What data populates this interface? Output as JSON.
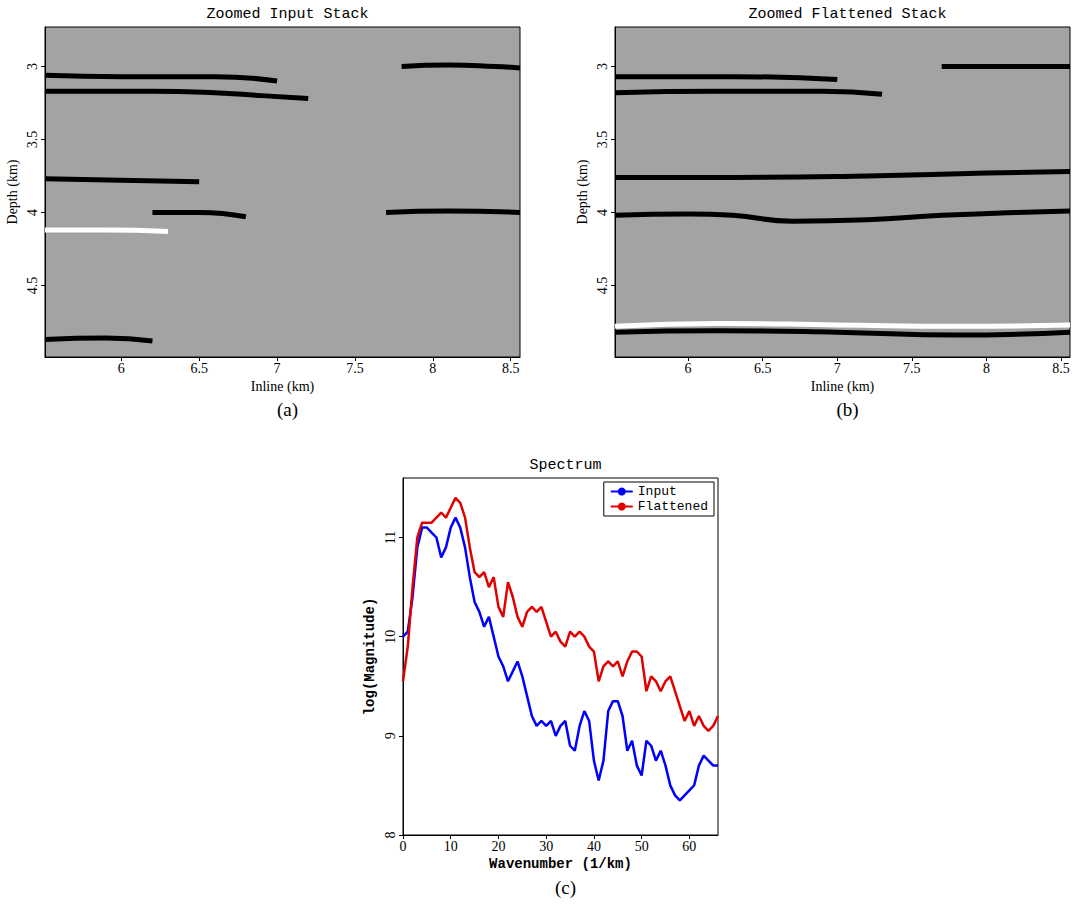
{
  "chart_data": [
    {
      "type": "line",
      "title": "Zoomed Input Stack",
      "label": "(a)",
      "x_label": "Inline (km)",
      "y_label": "Depth (km)",
      "xlim": [
        5.51,
        8.56
      ],
      "ylim": [
        4.99,
        2.73
      ],
      "xticks": [
        6,
        6.5,
        7,
        7.5,
        8,
        8.5
      ],
      "yticks": [
        3,
        3.5,
        4,
        4.5
      ],
      "grid": false,
      "series": [
        {
          "color": "#000000",
          "x": [
            5.51,
            6.0,
            6.6,
            7.0
          ],
          "values": [
            3.06,
            3.07,
            3.07,
            3.1
          ]
        },
        {
          "color": "#000000",
          "x": [
            5.51,
            5.8,
            6.2,
            6.6,
            6.9,
            7.2
          ],
          "values": [
            3.17,
            3.17,
            3.17,
            3.18,
            3.2,
            3.22
          ]
        },
        {
          "color": "#000000",
          "x": [
            7.8,
            8.1,
            8.4,
            8.56
          ],
          "values": [
            3.0,
            2.99,
            3.0,
            3.01
          ]
        },
        {
          "color": "#000000",
          "x": [
            5.51,
            6.0,
            6.5
          ],
          "values": [
            3.77,
            3.78,
            3.79
          ]
        },
        {
          "color": "#000000",
          "x": [
            6.2,
            6.5,
            6.8
          ],
          "values": [
            4.0,
            4.0,
            4.03
          ]
        },
        {
          "color": "#000000",
          "x": [
            7.7,
            8.1,
            8.56
          ],
          "values": [
            4.0,
            3.99,
            4.0
          ]
        },
        {
          "color": "#ffffff",
          "x": [
            5.51,
            5.9,
            6.3
          ],
          "values": [
            4.12,
            4.12,
            4.13
          ]
        },
        {
          "color": "#000000",
          "x": [
            5.51,
            5.9,
            6.2
          ],
          "values": [
            4.87,
            4.86,
            4.88
          ]
        }
      ]
    },
    {
      "type": "line",
      "title": "Zoomed Flattened Stack",
      "label": "(b)",
      "x_label": "Inline (km)",
      "y_label": "Depth (km)",
      "xlim": [
        5.51,
        8.56
      ],
      "ylim": [
        4.99,
        2.73
      ],
      "xticks": [
        6,
        6.5,
        7,
        7.5,
        8,
        8.5
      ],
      "yticks": [
        3,
        3.5,
        4,
        4.5
      ],
      "grid": false,
      "series": [
        {
          "color": "#000000",
          "x": [
            5.51,
            6.3,
            7.0
          ],
          "values": [
            3.07,
            3.07,
            3.09
          ]
        },
        {
          "color": "#000000",
          "x": [
            5.51,
            6.2,
            6.9,
            7.3
          ],
          "values": [
            3.18,
            3.17,
            3.17,
            3.19
          ]
        },
        {
          "color": "#000000",
          "x": [
            7.7,
            8.1,
            8.56
          ],
          "values": [
            3.0,
            3.0,
            3.0
          ]
        },
        {
          "color": "#000000",
          "x": [
            5.51,
            6.3,
            7.2,
            8.0,
            8.56
          ],
          "values": [
            3.76,
            3.76,
            3.75,
            3.73,
            3.72
          ]
        },
        {
          "color": "#000000",
          "x": [
            5.51,
            6.0,
            6.3,
            6.7,
            7.2,
            7.7,
            8.2,
            8.56
          ],
          "values": [
            4.02,
            4.01,
            4.02,
            4.06,
            4.05,
            4.02,
            4.0,
            3.99
          ]
        },
        {
          "color": "#ffffff",
          "x": [
            5.51,
            6.2,
            7.0,
            7.8,
            8.56
          ],
          "values": [
            4.78,
            4.76,
            4.77,
            4.78,
            4.77
          ]
        },
        {
          "color": "#000000",
          "x": [
            5.51,
            6.2,
            7.0,
            7.8,
            8.56
          ],
          "values": [
            4.82,
            4.81,
            4.82,
            4.84,
            4.82
          ]
        }
      ]
    },
    {
      "type": "line",
      "title": "Spectrum",
      "label": "(c)",
      "x_label": "Wavenumber (1/km)",
      "y_label": "log(Magnitude)",
      "xlim": [
        0,
        66
      ],
      "ylim": [
        8,
        11.6
      ],
      "xticks": [
        0,
        10,
        20,
        30,
        40,
        50,
        60
      ],
      "yticks": [
        8,
        9,
        10,
        11
      ],
      "grid": false,
      "legend": "top-right",
      "x": [
        0,
        1,
        2,
        3,
        4,
        5,
        6,
        7,
        8,
        9,
        10,
        11,
        12,
        13,
        14,
        15,
        16,
        17,
        18,
        19,
        20,
        21,
        22,
        23,
        24,
        25,
        26,
        27,
        28,
        29,
        30,
        31,
        32,
        33,
        34,
        35,
        36,
        37,
        38,
        39,
        40,
        41,
        42,
        43,
        44,
        45,
        46,
        47,
        48,
        49,
        50,
        51,
        52,
        53,
        54,
        55,
        56,
        57,
        58,
        59,
        60,
        61,
        62,
        63,
        64,
        65,
        66
      ],
      "series": [
        {
          "name": "Input",
          "color": "#0000ff",
          "values": [
            10.0,
            10.05,
            10.4,
            10.9,
            11.1,
            11.1,
            11.05,
            11.0,
            10.8,
            10.9,
            11.1,
            11.2,
            11.1,
            10.9,
            10.6,
            10.35,
            10.25,
            10.1,
            10.2,
            10.0,
            9.8,
            9.7,
            9.55,
            9.65,
            9.75,
            9.6,
            9.4,
            9.2,
            9.1,
            9.15,
            9.1,
            9.15,
            9.0,
            9.1,
            9.15,
            8.9,
            8.85,
            9.1,
            9.25,
            9.15,
            8.75,
            8.55,
            8.75,
            9.25,
            9.35,
            9.35,
            9.2,
            8.85,
            8.95,
            8.7,
            8.6,
            8.95,
            8.9,
            8.75,
            8.85,
            8.7,
            8.5,
            8.4,
            8.35,
            8.4,
            8.45,
            8.5,
            8.7,
            8.8,
            8.75,
            8.7,
            8.7
          ]
        },
        {
          "name": "Flattened",
          "color": "#e00000",
          "values": [
            9.55,
            9.9,
            10.5,
            11.0,
            11.15,
            11.15,
            11.15,
            11.2,
            11.25,
            11.2,
            11.3,
            11.4,
            11.35,
            11.2,
            10.9,
            10.65,
            10.6,
            10.65,
            10.5,
            10.6,
            10.3,
            10.2,
            10.55,
            10.4,
            10.2,
            10.1,
            10.25,
            10.3,
            10.25,
            10.3,
            10.15,
            10.0,
            10.05,
            9.95,
            9.9,
            10.05,
            10.0,
            10.05,
            10.0,
            9.9,
            9.85,
            9.55,
            9.7,
            9.75,
            9.7,
            9.75,
            9.6,
            9.75,
            9.85,
            9.85,
            9.8,
            9.45,
            9.6,
            9.55,
            9.45,
            9.55,
            9.6,
            9.45,
            9.3,
            9.15,
            9.25,
            9.1,
            9.2,
            9.1,
            9.05,
            9.1,
            9.2
          ]
        }
      ]
    }
  ]
}
